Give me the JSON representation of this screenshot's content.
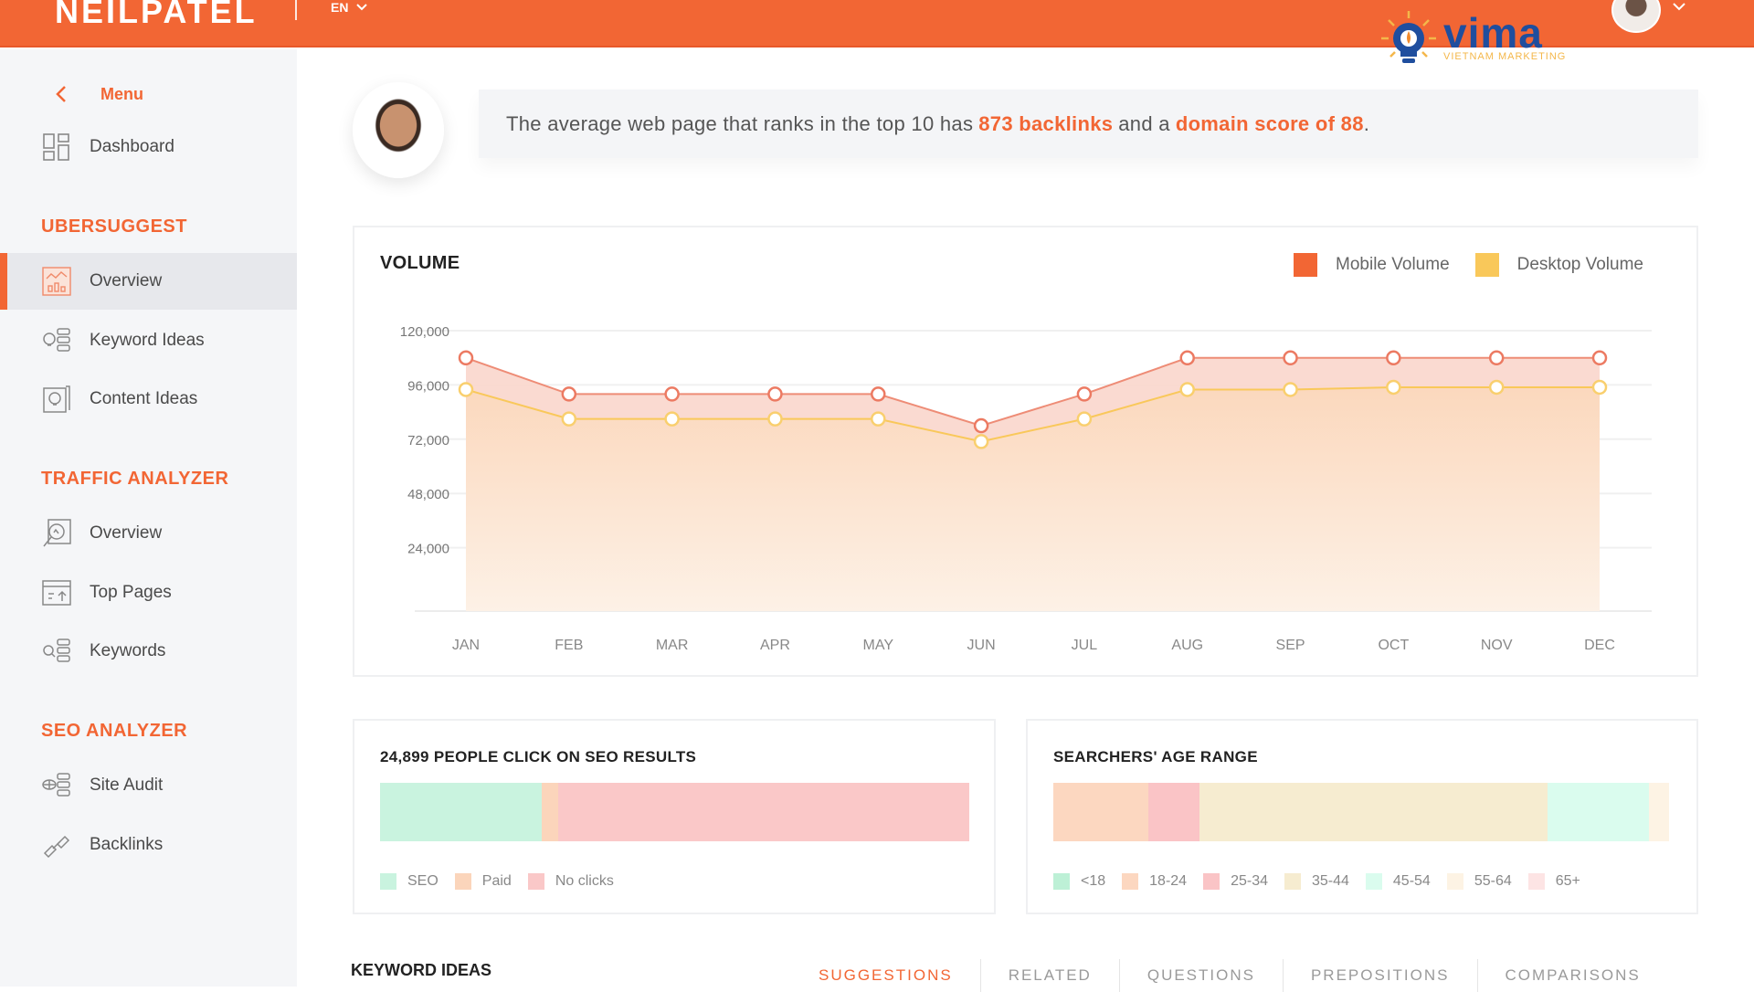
{
  "header": {
    "logo": "NEILPATEL",
    "language": "EN",
    "watermark": {
      "name": "vima",
      "tagline": "VIETNAM MARKETING"
    }
  },
  "sidebar": {
    "menu_label": "Menu",
    "dashboard": "Dashboard",
    "sections": [
      {
        "title": "UBERSUGGEST",
        "items": [
          {
            "label": "Overview",
            "icon": "chart-overview-icon",
            "active": true
          },
          {
            "label": "Keyword Ideas",
            "icon": "bulb-list-icon"
          },
          {
            "label": "Content Ideas",
            "icon": "bulb-doc-icon"
          }
        ]
      },
      {
        "title": "TRAFFIC ANALYZER",
        "items": [
          {
            "label": "Overview",
            "icon": "magnify-chart-icon"
          },
          {
            "label": "Top Pages",
            "icon": "browser-upload-icon"
          },
          {
            "label": "Keywords",
            "icon": "search-list-icon"
          }
        ]
      },
      {
        "title": "SEO ANALYZER",
        "items": [
          {
            "label": "Site Audit",
            "icon": "globe-list-icon"
          },
          {
            "label": "Backlinks",
            "icon": "link-icon"
          }
        ]
      }
    ]
  },
  "tip": {
    "prefix": "The average web page that ranks in the top 10 has",
    "highlight1": "873 backlinks",
    "middle": "and a",
    "highlight2": "domain score of 88",
    "suffix": "."
  },
  "chart_data": {
    "type": "area",
    "title": "VOLUME",
    "categories": [
      "JAN",
      "FEB",
      "MAR",
      "APR",
      "MAY",
      "JUN",
      "JUL",
      "AUG",
      "SEP",
      "OCT",
      "NOV",
      "DEC"
    ],
    "series": [
      {
        "name": "Mobile Volume",
        "color": "#f26634",
        "values": [
          112000,
          96000,
          96000,
          96000,
          96000,
          82000,
          96000,
          112000,
          112000,
          112000,
          112000,
          112000
        ]
      },
      {
        "name": "Desktop Volume",
        "color": "#f9c85a",
        "values": [
          98000,
          85000,
          85000,
          85000,
          85000,
          75000,
          85000,
          98000,
          98000,
          99000,
          99000,
          99000
        ]
      }
    ],
    "yticks": [
      "120,000",
      "96,000",
      "72,000",
      "48,000",
      "24,000"
    ],
    "ylim": [
      0,
      120000
    ],
    "grid": true,
    "legend_position": "top-right"
  },
  "clicks": {
    "title": "24,899 PEOPLE CLICK ON SEO RESULTS",
    "segments": [
      {
        "label": "SEO",
        "pct": 27.5,
        "color": "#c9f3df"
      },
      {
        "label": "Paid",
        "pct": 2.7,
        "color": "#fbd5bb"
      },
      {
        "label": "No clicks",
        "pct": 69.8,
        "color": "#fac8c8"
      }
    ]
  },
  "age": {
    "title": "SEARCHERS' AGE RANGE",
    "segments": [
      {
        "label": "<18",
        "pct": 0,
        "color": "#bdf0d6"
      },
      {
        "label": "18-24",
        "pct": 15.5,
        "color": "#fcd7c0"
      },
      {
        "label": "25-34",
        "pct": 8.2,
        "color": "#fac4c6"
      },
      {
        "label": "35-44",
        "pct": 56.5,
        "color": "#f6ecd0"
      },
      {
        "label": "45-54",
        "pct": 16.5,
        "color": "#dafcee"
      },
      {
        "label": "55-64",
        "pct": 3.3,
        "color": "#fdf3e4"
      },
      {
        "label": "65+",
        "pct": 0,
        "color": "#fde4e4"
      }
    ]
  },
  "keyword_ideas": {
    "title": "KEYWORD IDEAS",
    "tabs": [
      "SUGGESTIONS",
      "RELATED",
      "QUESTIONS",
      "PREPOSITIONS",
      "COMPARISONS"
    ],
    "active_tab": 0
  }
}
